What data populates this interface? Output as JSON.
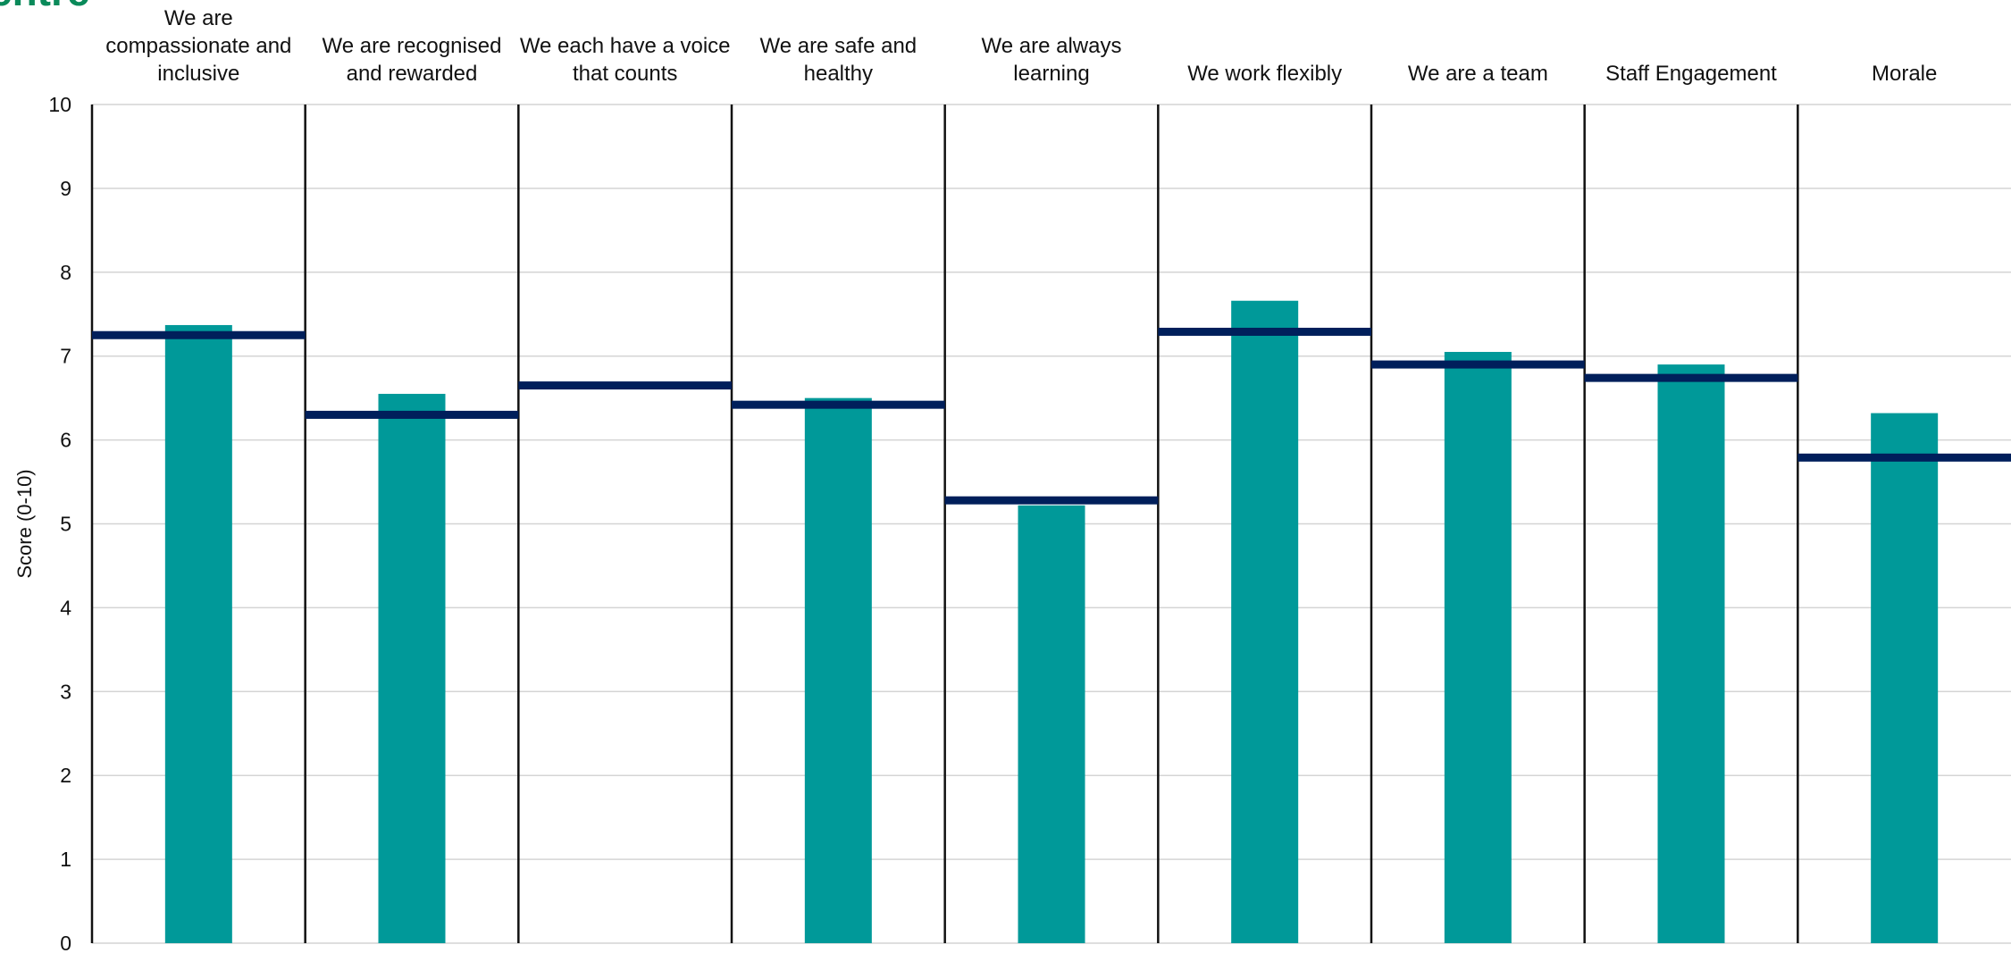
{
  "logo": {
    "text": "entre",
    "color": "#0a8a5a"
  },
  "chart_data": {
    "type": "bar",
    "categories": [
      "We are compassionate and inclusive",
      "We are recognised and rewarded",
      "We each have a voice that counts",
      "We are safe and healthy",
      "We are always learning",
      "We work flexibly",
      "We are a team",
      "Staff Engagement",
      "Morale"
    ],
    "category_label_lines": [
      [
        "We are",
        "compassionate and",
        "inclusive"
      ],
      [
        "We are recognised",
        "and rewarded"
      ],
      [
        "We each have a voice",
        "that counts"
      ],
      [
        "We are safe and",
        "healthy"
      ],
      [
        "We are always",
        "learning"
      ],
      [
        "We work flexibly"
      ],
      [
        "We are a team"
      ],
      [
        "Staff Engagement"
      ],
      [
        "Morale"
      ]
    ],
    "series": [
      {
        "kind": "bar",
        "values": [
          7.37,
          6.55,
          null,
          6.5,
          5.22,
          7.66,
          7.05,
          6.9,
          6.32
        ],
        "color": "#009999"
      },
      {
        "kind": "marker",
        "values": [
          7.25,
          6.3,
          6.65,
          6.42,
          5.28,
          7.29,
          6.9,
          6.74,
          5.79
        ],
        "color": "#001f5b"
      }
    ],
    "ylabel": "Score (0-10)",
    "ylim": [
      0,
      10
    ],
    "yticks": [
      0,
      1,
      2,
      3,
      4,
      5,
      6,
      7,
      8,
      9,
      10
    ],
    "grid": true,
    "category_dividers": true
  }
}
